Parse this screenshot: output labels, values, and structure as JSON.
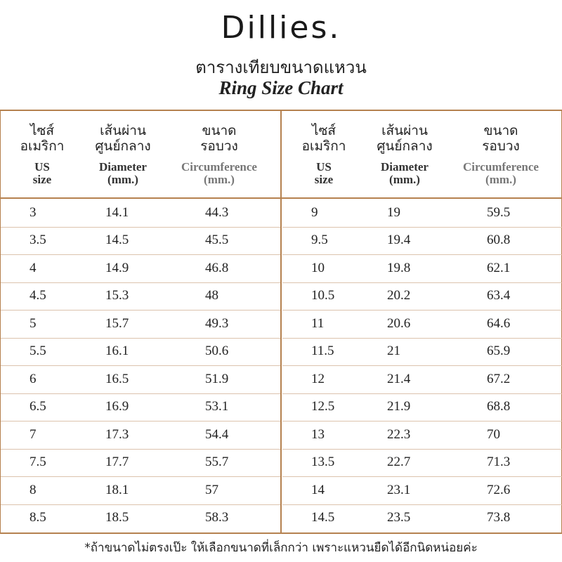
{
  "header": {
    "logo": "Dillies.",
    "title_th": "ตารางเทียบขนาดแหวน",
    "title_en": "Ring Size Chart"
  },
  "tables": [
    {
      "columns": [
        {
          "th": [
            "ไซส์",
            "อเมริกา"
          ],
          "en": [
            "US",
            "size"
          ]
        },
        {
          "th": [
            "เส้นผ่าน",
            "ศูนย์กลาง"
          ],
          "en": [
            "Diameter",
            "(mm.)"
          ]
        },
        {
          "th": [
            "ขนาด",
            "รอบวง"
          ],
          "en": [
            "Circumference",
            "(mm.)"
          ]
        }
      ],
      "rows": [
        [
          3,
          14.1,
          44.3
        ],
        [
          3.5,
          14.5,
          45.5
        ],
        [
          4,
          14.9,
          46.8
        ],
        [
          4.5,
          15.3,
          48
        ],
        [
          5,
          15.7,
          49.3
        ],
        [
          5.5,
          16.1,
          50.6
        ],
        [
          6,
          16.5,
          51.9
        ],
        [
          6.5,
          16.9,
          53.1
        ],
        [
          7,
          17.3,
          54.4
        ],
        [
          7.5,
          17.7,
          55.7
        ],
        [
          8,
          18.1,
          57
        ],
        [
          8.5,
          18.5,
          58.3
        ]
      ]
    },
    {
      "columns": [
        {
          "th": [
            "ไซส์",
            "อเมริกา"
          ],
          "en": [
            "US",
            "size"
          ]
        },
        {
          "th": [
            "เส้นผ่าน",
            "ศูนย์กลาง"
          ],
          "en": [
            "Diameter",
            "(mm.)"
          ]
        },
        {
          "th": [
            "ขนาด",
            "รอบวง"
          ],
          "en": [
            "Circumference",
            "(mm.)"
          ]
        }
      ],
      "rows": [
        [
          9,
          19,
          59.5
        ],
        [
          9.5,
          19.4,
          60.8
        ],
        [
          10,
          19.8,
          62.1
        ],
        [
          10.5,
          20.2,
          63.4
        ],
        [
          11,
          20.6,
          64.6
        ],
        [
          11.5,
          21,
          65.9
        ],
        [
          12,
          21.4,
          67.2
        ],
        [
          12.5,
          21.9,
          68.8
        ],
        [
          13,
          22.3,
          70
        ],
        [
          13.5,
          22.7,
          71.3
        ],
        [
          14,
          23.1,
          72.6
        ],
        [
          14.5,
          23.5,
          73.8
        ]
      ]
    }
  ],
  "footnote": "*ถ้าขนาดไม่ตรงเป๊ะ ให้เลือกขนาดที่เล็กกว่า เพราะแหวนยืดได้อีกนิดหน่อยค่ะ"
}
